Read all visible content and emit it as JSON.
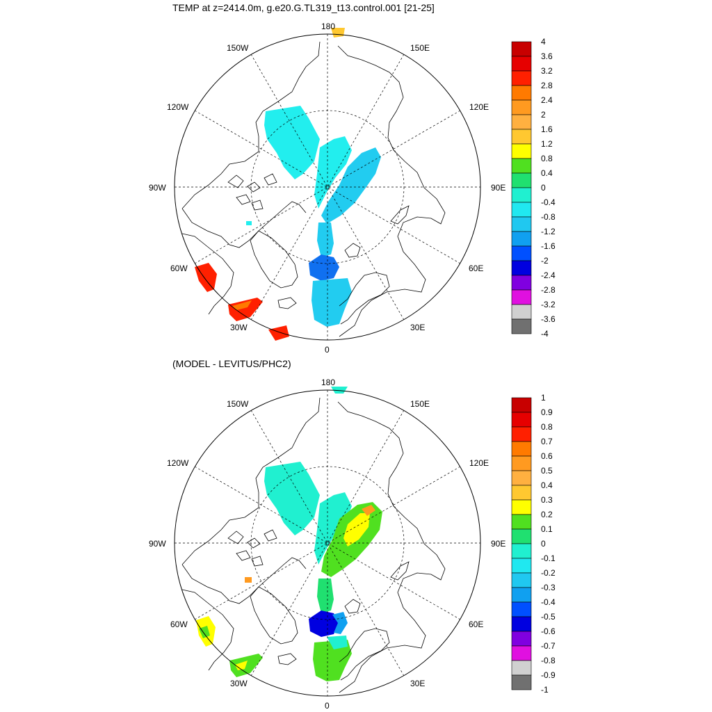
{
  "panels": [
    {
      "title": "TEMP at z=2414.0m, g.e20.G.TL319_t13.control.001 [21-25]",
      "lon_labels": {
        "top": "180",
        "bottom": "0",
        "left": "90W",
        "right": "90E",
        "ul": "150W",
        "ur": "150E",
        "ul2": "120W",
        "ur2": "120E",
        "ll2": "60W",
        "lr2": "60E",
        "ll": "30W",
        "lr": "30E"
      },
      "colorbar": {
        "labels": [
          "4",
          "3.6",
          "3.2",
          "2.8",
          "2.4",
          "2",
          "1.6",
          "1.2",
          "0.8",
          "0.4",
          "0",
          "-0.4",
          "-0.8",
          "-1.2",
          "-1.6",
          "-2",
          "-2.4",
          "-2.8",
          "-3.2",
          "-3.6",
          "-4"
        ],
        "colors": [
          "#c80000",
          "#e60000",
          "#ff2000",
          "#ff7a00",
          "#ff9a20",
          "#ffb040",
          "#ffc830",
          "#ffff00",
          "#50e020",
          "#20e070",
          "#20f0d0",
          "#20e8f0",
          "#20c8f0",
          "#10a0f0",
          "#0050ff",
          "#0000e0",
          "#8000e0",
          "#e010e0",
          "#d0d0d0",
          "#707070"
        ]
      }
    },
    {
      "title": "(MODEL - LEVITUS/PHC2)",
      "lon_labels": {
        "top": "180",
        "bottom": "0",
        "left": "90W",
        "right": "90E",
        "ul": "150W",
        "ur": "150E",
        "ul2": "120W",
        "ur2": "120E",
        "ll2": "60W",
        "lr2": "60E",
        "ll": "30W",
        "lr": "30E"
      },
      "colorbar": {
        "labels": [
          "1",
          "0.9",
          "0.8",
          "0.7",
          "0.6",
          "0.5",
          "0.4",
          "0.3",
          "0.2",
          "0.1",
          "0",
          "-0.1",
          "-0.2",
          "-0.3",
          "-0.4",
          "-0.5",
          "-0.6",
          "-0.7",
          "-0.8",
          "-0.9",
          "-1"
        ],
        "colors": [
          "#c80000",
          "#e60000",
          "#ff2000",
          "#ff7a00",
          "#ff9a20",
          "#ffb040",
          "#ffc830",
          "#ffff00",
          "#50e020",
          "#20e070",
          "#20f0d0",
          "#20e8f0",
          "#20c8f0",
          "#10a0f0",
          "#0050ff",
          "#0000e0",
          "#8000e0",
          "#e010e0",
          "#d0d0d0",
          "#707070"
        ]
      }
    }
  ]
}
